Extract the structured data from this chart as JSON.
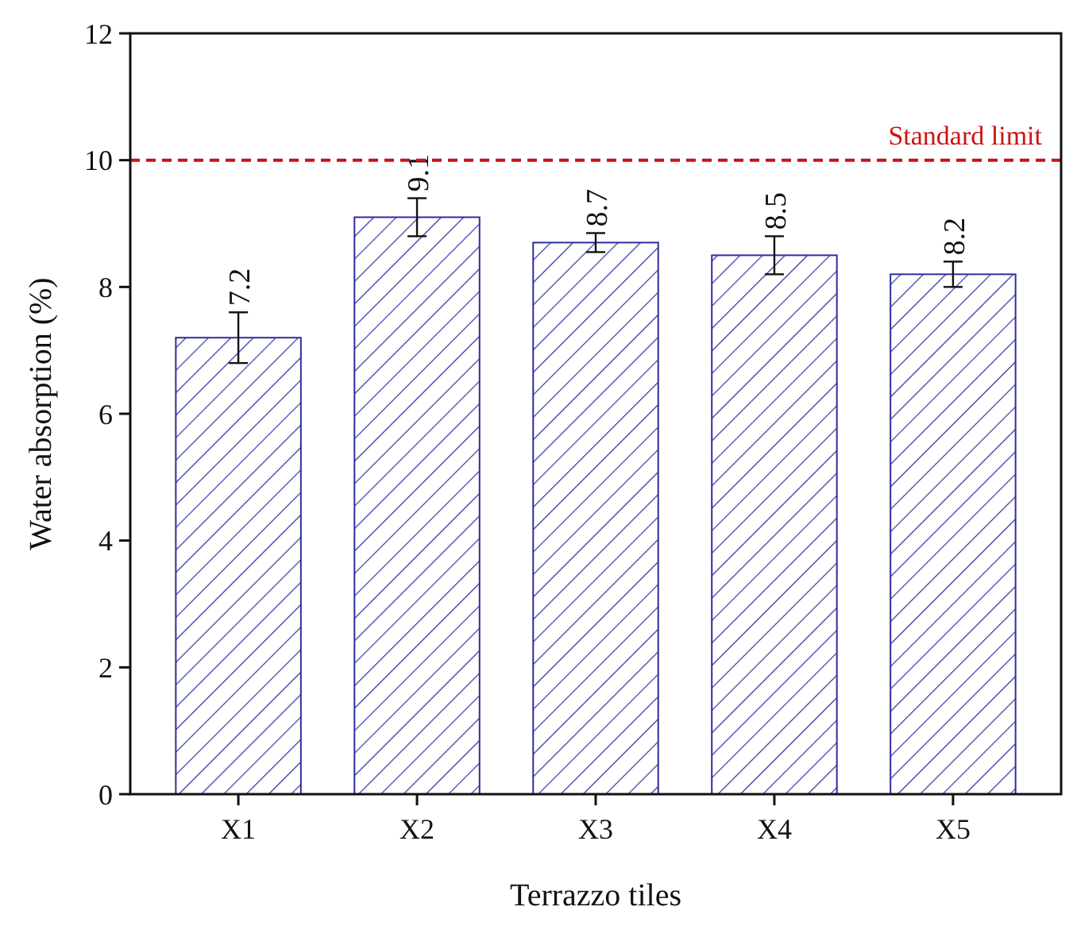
{
  "chart_data": {
    "type": "bar",
    "xlabel": "Terrazzo tiles",
    "ylabel": "Water absorption (%)",
    "categories": [
      "X1",
      "X2",
      "X3",
      "X4",
      "X5"
    ],
    "values": [
      7.2,
      9.1,
      8.7,
      8.5,
      8.2
    ],
    "errors": [
      0.4,
      0.3,
      0.15,
      0.3,
      0.2
    ],
    "color": "#2e2e9e",
    "ylim": [
      0,
      12
    ],
    "yticks": [
      0,
      2,
      4,
      6,
      8,
      10,
      12
    ],
    "data_labels": true,
    "grid": false,
    "ref_lines": [
      {
        "axis": "y",
        "value": 10,
        "label": "Standard limit",
        "color": "#cc1111",
        "line_style": "dashed"
      }
    ]
  }
}
